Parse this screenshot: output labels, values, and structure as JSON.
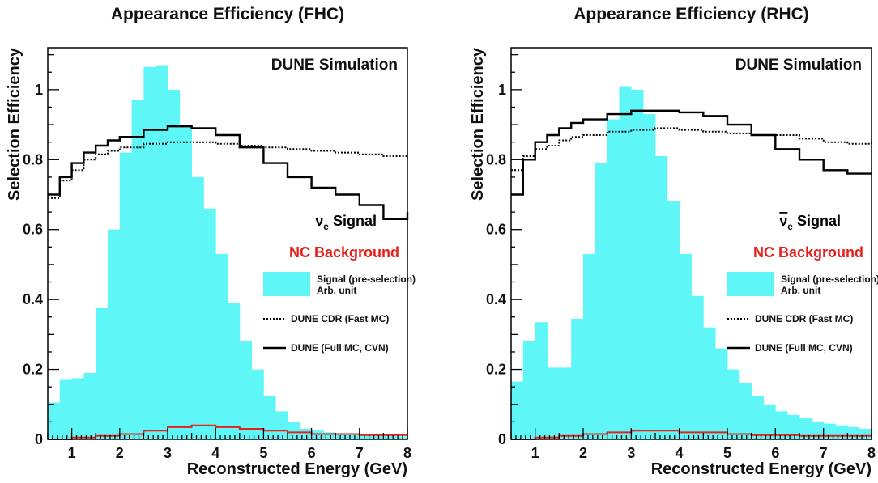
{
  "chart_data": [
    {
      "type": "bar",
      "title": "Appearance Efficiency (FHC)",
      "xlabel": "Reconstructed Energy (GeV)",
      "ylabel": "Selection Efficiency",
      "xlim": [
        0.5,
        8.0
      ],
      "ylim": [
        0,
        1.12
      ],
      "xticks": [
        "1",
        "2",
        "3",
        "4",
        "5",
        "6",
        "7",
        "8"
      ],
      "yticks": [
        "0",
        "0.2",
        "0.4",
        "0.6",
        "0.8",
        "1"
      ],
      "watermark": "DUNE Simulation",
      "signal_label": "ν",
      "signal_sub": "e",
      "signal_suffix": " Signal",
      "signal_bar": false,
      "background_label": "NC Background",
      "legend": [
        {
          "name": "Signal (pre-selection)",
          "name2": "Arb. unit",
          "style": "fill"
        },
        {
          "name": "DUNE CDR (Fast MC)",
          "style": "dotted"
        },
        {
          "name": "DUNE (Full MC, CVN)",
          "style": "solid"
        }
      ],
      "colors": {
        "fill": "#5ef6f6",
        "signal": "#000000",
        "background": "#e8201c"
      },
      "histogram": {
        "edges": [
          0.5,
          0.75,
          1.0,
          1.25,
          1.5,
          1.75,
          2.0,
          2.25,
          2.5,
          2.75,
          3.0,
          3.25,
          3.5,
          3.75,
          4.0,
          4.25,
          4.5,
          4.75,
          5.0,
          5.25,
          5.5,
          5.75,
          6.0,
          6.25,
          6.5,
          6.75,
          7.0,
          7.25,
          7.5,
          7.75,
          8.0
        ],
        "values": [
          0.105,
          0.17,
          0.175,
          0.19,
          0.375,
          0.6,
          0.82,
          0.97,
          1.065,
          1.07,
          1.0,
          0.9,
          0.75,
          0.66,
          0.53,
          0.39,
          0.28,
          0.2,
          0.125,
          0.08,
          0.05,
          0.03,
          0.025,
          0.02,
          0.015,
          0.015,
          0.012,
          0.01,
          0.01,
          0.008
        ]
      },
      "series": [
        {
          "name": "DUNE CDR (Fast MC)",
          "style": "dotted",
          "x": [
            0.5,
            0.75,
            1.0,
            1.25,
            1.5,
            1.75,
            2.0,
            2.5,
            3.0,
            3.5,
            4.0,
            4.5,
            5.0,
            5.5,
            6.0,
            6.5,
            7.0,
            7.5,
            8.0
          ],
          "values": [
            0.69,
            0.74,
            0.77,
            0.8,
            0.815,
            0.825,
            0.835,
            0.845,
            0.85,
            0.85,
            0.845,
            0.84,
            0.835,
            0.83,
            0.825,
            0.82,
            0.815,
            0.81,
            0.805
          ]
        },
        {
          "name": "DUNE (Full MC, CVN)",
          "style": "solid",
          "x": [
            0.5,
            0.75,
            1.0,
            1.25,
            1.5,
            1.75,
            2.0,
            2.5,
            3.0,
            3.5,
            4.0,
            4.5,
            5.0,
            5.5,
            6.0,
            6.5,
            7.0,
            7.5,
            8.0
          ],
          "values": [
            0.7,
            0.75,
            0.79,
            0.82,
            0.84,
            0.855,
            0.865,
            0.885,
            0.895,
            0.89,
            0.87,
            0.835,
            0.79,
            0.75,
            0.72,
            0.7,
            0.67,
            0.63,
            0.65
          ]
        },
        {
          "name": "NC Background",
          "style": "red",
          "x": [
            0.5,
            1.0,
            1.5,
            2.0,
            2.5,
            3.0,
            3.5,
            4.0,
            4.5,
            5.0,
            5.5,
            6.0,
            6.5,
            7.0,
            7.5,
            8.0
          ],
          "values": [
            0.0,
            0.005,
            0.01,
            0.015,
            0.025,
            0.035,
            0.04,
            0.035,
            0.03,
            0.025,
            0.02,
            0.015,
            0.015,
            0.012,
            0.012,
            0.012
          ]
        }
      ]
    },
    {
      "type": "bar",
      "title": "Appearance Efficiency (RHC)",
      "xlabel": "Reconstructed Energy (GeV)",
      "ylabel": "Selection Efficiency",
      "xlim": [
        0.5,
        8.0
      ],
      "ylim": [
        0,
        1.12
      ],
      "xticks": [
        "1",
        "2",
        "3",
        "4",
        "5",
        "6",
        "7",
        "8"
      ],
      "yticks": [
        "0",
        "0.2",
        "0.4",
        "0.6",
        "0.8",
        "1"
      ],
      "watermark": "DUNE Simulation",
      "signal_label": "ν",
      "signal_sub": "e",
      "signal_suffix": " Signal",
      "signal_bar": true,
      "background_label": "NC Background",
      "legend": [
        {
          "name": "Signal (pre-selection)",
          "name2": "Arb. unit",
          "style": "fill"
        },
        {
          "name": "DUNE CDR (Fast MC)",
          "style": "dotted"
        },
        {
          "name": "DUNE (Full MC, CVN)",
          "style": "solid"
        }
      ],
      "colors": {
        "fill": "#5ef6f6",
        "signal": "#000000",
        "background": "#e8201c"
      },
      "histogram": {
        "edges": [
          0.5,
          0.75,
          1.0,
          1.25,
          1.5,
          1.75,
          2.0,
          2.25,
          2.5,
          2.75,
          3.0,
          3.25,
          3.5,
          3.75,
          4.0,
          4.25,
          4.5,
          4.75,
          5.0,
          5.25,
          5.5,
          5.75,
          6.0,
          6.25,
          6.5,
          6.75,
          7.0,
          7.25,
          7.5,
          7.75,
          8.0
        ],
        "values": [
          0.165,
          0.28,
          0.335,
          0.205,
          0.205,
          0.345,
          0.53,
          0.79,
          0.915,
          1.01,
          1.0,
          0.93,
          0.81,
          0.68,
          0.53,
          0.41,
          0.32,
          0.26,
          0.2,
          0.16,
          0.125,
          0.1,
          0.08,
          0.07,
          0.06,
          0.05,
          0.045,
          0.04,
          0.035,
          0.03
        ]
      },
      "series": [
        {
          "name": "DUNE CDR (Fast MC)",
          "style": "dotted",
          "x": [
            0.5,
            0.75,
            1.0,
            1.25,
            1.5,
            1.75,
            2.0,
            2.5,
            3.0,
            3.5,
            4.0,
            4.5,
            5.0,
            5.5,
            6.0,
            6.5,
            7.0,
            7.5,
            8.0
          ],
          "values": [
            0.77,
            0.81,
            0.83,
            0.84,
            0.855,
            0.865,
            0.87,
            0.88,
            0.885,
            0.89,
            0.885,
            0.88,
            0.875,
            0.87,
            0.87,
            0.86,
            0.85,
            0.845,
            0.855
          ]
        },
        {
          "name": "DUNE (Full MC, CVN)",
          "style": "solid",
          "x": [
            0.5,
            0.75,
            1.0,
            1.25,
            1.5,
            1.75,
            2.0,
            2.5,
            3.0,
            3.5,
            4.0,
            4.5,
            5.0,
            5.5,
            6.0,
            6.5,
            7.0,
            7.5,
            8.0
          ],
          "values": [
            0.7,
            0.8,
            0.85,
            0.87,
            0.89,
            0.905,
            0.915,
            0.93,
            0.94,
            0.94,
            0.935,
            0.925,
            0.9,
            0.87,
            0.83,
            0.8,
            0.77,
            0.76,
            0.76
          ]
        },
        {
          "name": "NC Background",
          "style": "red",
          "x": [
            0.5,
            1.0,
            1.5,
            2.0,
            2.5,
            3.0,
            3.5,
            4.0,
            4.5,
            5.0,
            5.5,
            6.0,
            6.5,
            7.0,
            7.5,
            8.0
          ],
          "values": [
            0.0,
            0.005,
            0.01,
            0.015,
            0.02,
            0.025,
            0.025,
            0.02,
            0.02,
            0.015,
            0.012,
            0.012,
            0.01,
            0.01,
            0.01,
            0.01
          ]
        }
      ]
    }
  ]
}
